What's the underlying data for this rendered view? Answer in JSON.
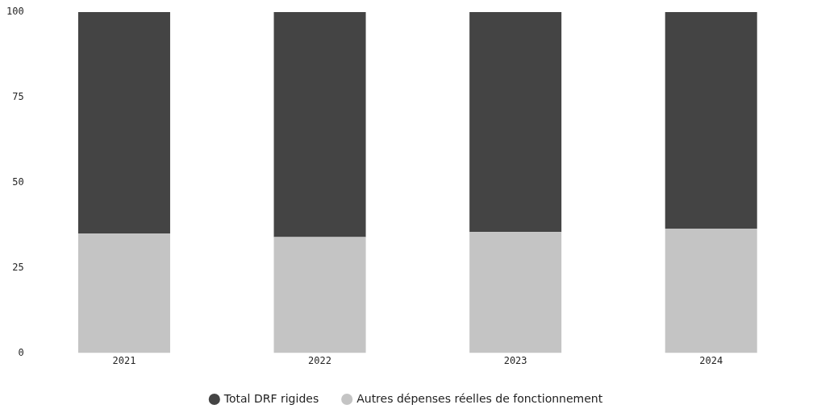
{
  "chart_data": {
    "type": "bar",
    "stacked": true,
    "categories": [
      "2021",
      "2022",
      "2023",
      "2024"
    ],
    "series": [
      {
        "name": "Autres dépenses réelles de fonctionnement",
        "color": "#c4c4c4",
        "values": [
          35,
          34,
          35.5,
          36.5
        ]
      },
      {
        "name": "Total DRF rigides",
        "color": "#444444",
        "values": [
          65,
          66,
          64.5,
          63.5
        ]
      }
    ],
    "ylim": [
      0,
      100
    ],
    "yticks": [
      0,
      25,
      50,
      75,
      100
    ],
    "grid": false,
    "legend": "bottom"
  }
}
